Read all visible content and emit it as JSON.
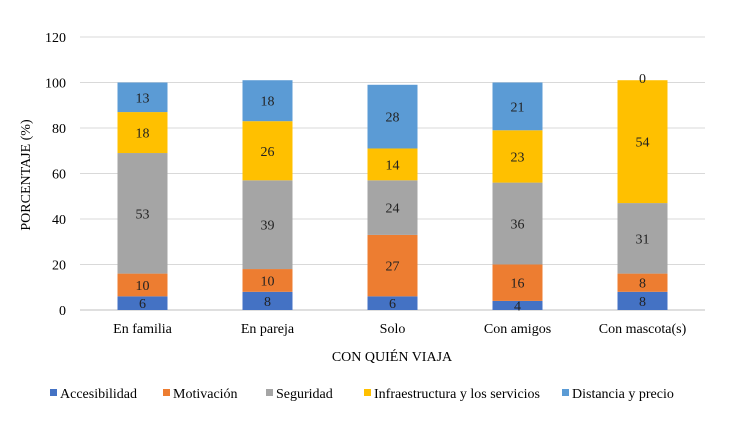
{
  "chart_data": {
    "type": "bar",
    "stacked": true,
    "title": "",
    "xlabel": "CON QUIÉN VIAJA",
    "ylabel": "PORCENTAJE (%)",
    "ylim": [
      0,
      120
    ],
    "yticks": [
      0,
      20,
      40,
      60,
      80,
      100,
      120
    ],
    "grid": true,
    "legend_position": "bottom",
    "categories": [
      "En familia",
      "En pareja",
      "Solo",
      "Con amigos",
      "Con mascota(s)"
    ],
    "series": [
      {
        "name": "Accesibilidad",
        "color": "#4472C4",
        "values": [
          6,
          8,
          6,
          4,
          8
        ]
      },
      {
        "name": "Motivación",
        "color": "#ED7D31",
        "values": [
          10,
          10,
          27,
          16,
          8
        ]
      },
      {
        "name": "Seguridad",
        "color": "#A5A5A5",
        "values": [
          53,
          39,
          24,
          36,
          31
        ]
      },
      {
        "name": "Infraestructura y los servicios",
        "color": "#FFC000",
        "values": [
          18,
          26,
          14,
          23,
          54
        ]
      },
      {
        "name": "Distancia y precio",
        "color": "#5B9BD5",
        "values": [
          13,
          18,
          28,
          21,
          0
        ]
      }
    ]
  }
}
